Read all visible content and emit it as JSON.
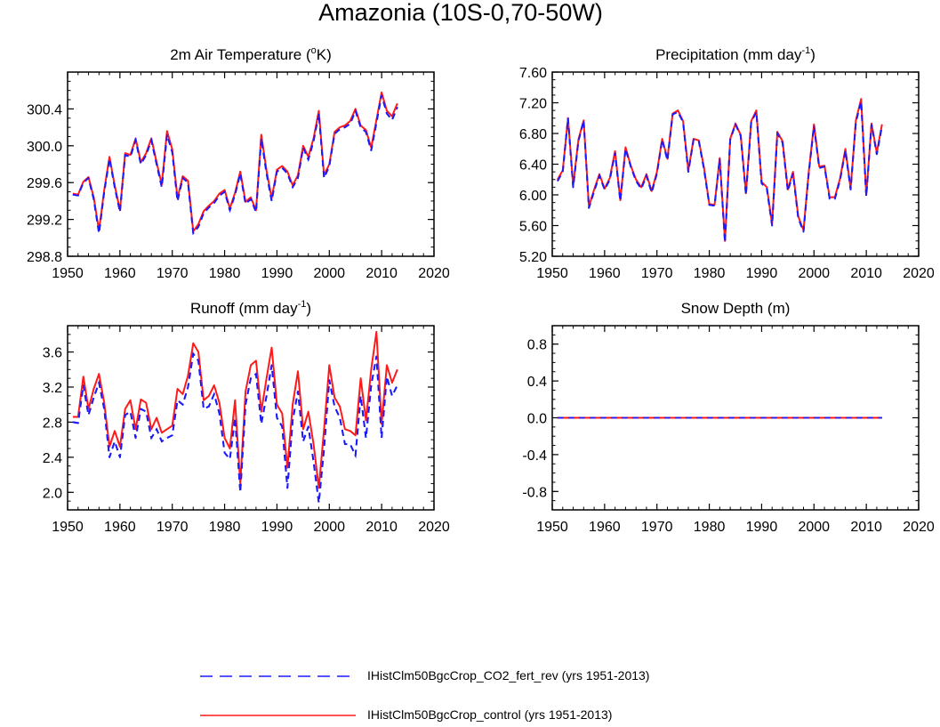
{
  "title": "Amazonia (10S-0,70-50W)",
  "legend": {
    "position": "bottom-center",
    "items": [
      {
        "label": "IHistClm50BgcCrop_CO2_fert_rev (yrs 1951-2013)",
        "color": "#1a1aff",
        "style": "dashed"
      },
      {
        "label": "IHistClm50BgcCrop_control (yrs 1951-2013)",
        "color": "#ff1a1a",
        "style": "solid"
      }
    ]
  },
  "chart_data": [
    {
      "type": "line",
      "title": "2m Air Temperature",
      "title_unit_base": "(",
      "title_unit_sup": "o",
      "title_unit_tail": "K)",
      "xlim": [
        1950,
        2020
      ],
      "ylim": [
        298.8,
        300.8
      ],
      "xticks": [
        1950,
        1960,
        1970,
        1980,
        1990,
        2000,
        2010,
        2020
      ],
      "yticks": [
        298.8,
        299.2,
        299.6,
        300.0,
        300.4
      ],
      "ytick_labels": [
        "298.8",
        "299.2",
        "299.6",
        "300.0",
        "300.4"
      ],
      "x": [
        1951,
        1952,
        1953,
        1954,
        1955,
        1956,
        1957,
        1958,
        1959,
        1960,
        1961,
        1962,
        1963,
        1964,
        1965,
        1966,
        1967,
        1968,
        1969,
        1970,
        1971,
        1972,
        1973,
        1974,
        1975,
        1976,
        1977,
        1978,
        1979,
        1980,
        1981,
        1982,
        1983,
        1984,
        1985,
        1986,
        1987,
        1988,
        1989,
        1990,
        1991,
        1992,
        1993,
        1994,
        1995,
        1996,
        1997,
        1998,
        1999,
        2000,
        2001,
        2002,
        2003,
        2004,
        2005,
        2006,
        2007,
        2008,
        2009,
        2010,
        2011,
        2012,
        2013
      ],
      "series": [
        {
          "name": "IHistClm50BgcCrop_CO2_fert_rev (yrs 1951-2013)",
          "color": "#1a1aff",
          "style": "dashed",
          "values": [
            299.47,
            299.46,
            299.6,
            299.65,
            299.42,
            299.05,
            299.5,
            299.86,
            299.55,
            299.28,
            299.9,
            299.88,
            300.06,
            299.8,
            299.9,
            300.06,
            299.8,
            299.55,
            300.12,
            299.93,
            299.4,
            299.65,
            299.6,
            299.05,
            299.12,
            299.27,
            299.33,
            299.38,
            299.46,
            299.5,
            299.3,
            299.47,
            299.7,
            299.37,
            299.42,
            299.28,
            300.08,
            299.7,
            299.4,
            299.72,
            299.76,
            299.7,
            299.55,
            299.65,
            299.98,
            299.85,
            300.05,
            300.35,
            299.65,
            299.78,
            300.13,
            300.18,
            300.2,
            300.24,
            300.38,
            300.2,
            300.15,
            299.95,
            300.25,
            300.55,
            300.35,
            300.28,
            300.42
          ]
        },
        {
          "name": "IHistClm50BgcCrop_control (yrs 1951-2013)",
          "color": "#ff1a1a",
          "style": "solid",
          "values": [
            299.48,
            299.47,
            299.61,
            299.66,
            299.44,
            299.08,
            299.52,
            299.88,
            299.57,
            299.3,
            299.92,
            299.9,
            300.08,
            299.82,
            299.92,
            300.08,
            299.82,
            299.58,
            300.16,
            299.96,
            299.43,
            299.67,
            299.62,
            299.07,
            299.15,
            299.29,
            299.35,
            299.4,
            299.48,
            299.52,
            299.32,
            299.49,
            299.72,
            299.39,
            299.44,
            299.3,
            300.12,
            299.73,
            299.43,
            299.74,
            299.78,
            299.72,
            299.57,
            299.68,
            300.0,
            299.88,
            300.08,
            300.38,
            299.68,
            299.8,
            300.15,
            300.2,
            300.22,
            300.27,
            300.4,
            300.22,
            300.17,
            299.98,
            300.28,
            300.58,
            300.38,
            300.32,
            300.46
          ]
        }
      ]
    },
    {
      "type": "line",
      "title": "Precipitation",
      "title_unit_base": "(mm day",
      "title_unit_sup": "-1",
      "title_unit_tail": ")",
      "xlim": [
        1950,
        2020
      ],
      "ylim": [
        5.2,
        7.6
      ],
      "xticks": [
        1950,
        1960,
        1970,
        1980,
        1990,
        2000,
        2010,
        2020
      ],
      "yticks": [
        5.2,
        5.6,
        6.0,
        6.4,
        6.8,
        7.2,
        7.6
      ],
      "ytick_labels": [
        "5.20",
        "5.60",
        "6.00",
        "6.40",
        "6.80",
        "7.20",
        "7.60"
      ],
      "x": [
        1951,
        1952,
        1953,
        1954,
        1955,
        1956,
        1957,
        1958,
        1959,
        1960,
        1961,
        1962,
        1963,
        1964,
        1965,
        1966,
        1967,
        1968,
        1969,
        1970,
        1971,
        1972,
        1973,
        1974,
        1975,
        1976,
        1977,
        1978,
        1979,
        1980,
        1981,
        1982,
        1983,
        1984,
        1985,
        1986,
        1987,
        1988,
        1989,
        1990,
        1991,
        1992,
        1993,
        1994,
        1995,
        1996,
        1997,
        1998,
        1999,
        2000,
        2001,
        2002,
        2003,
        2004,
        2005,
        2006,
        2007,
        2008,
        2009,
        2010,
        2011,
        2012,
        2013
      ],
      "series": [
        {
          "name": "IHistClm50BgcCrop_CO2_fert_rev (yrs 1951-2013)",
          "color": "#1a1aff",
          "style": "dashed",
          "values": [
            6.18,
            6.3,
            7.0,
            6.1,
            6.7,
            6.97,
            5.83,
            6.05,
            6.25,
            6.07,
            6.2,
            6.55,
            5.92,
            6.6,
            6.37,
            6.18,
            6.08,
            6.25,
            6.03,
            6.28,
            6.72,
            6.45,
            7.05,
            7.08,
            6.95,
            6.3,
            6.72,
            6.7,
            6.33,
            5.87,
            5.86,
            6.47,
            5.38,
            6.72,
            6.92,
            6.77,
            6.0,
            6.95,
            7.08,
            6.15,
            6.08,
            5.6,
            6.8,
            6.68,
            6.05,
            6.28,
            5.7,
            5.52,
            6.28,
            6.9,
            6.35,
            6.37,
            5.95,
            5.95,
            6.2,
            6.58,
            6.07,
            6.95,
            7.22,
            5.98,
            6.92,
            6.53,
            6.9
          ]
        },
        {
          "name": "IHistClm50BgcCrop_control (yrs 1951-2013)",
          "color": "#ff1a1a",
          "style": "solid",
          "values": [
            6.2,
            6.32,
            7.0,
            6.12,
            6.72,
            6.97,
            5.85,
            6.07,
            6.27,
            6.08,
            6.22,
            6.57,
            5.93,
            6.62,
            6.38,
            6.2,
            6.1,
            6.27,
            6.05,
            6.3,
            6.73,
            6.47,
            7.06,
            7.1,
            6.96,
            6.32,
            6.73,
            6.71,
            6.35,
            5.88,
            5.87,
            6.48,
            5.4,
            6.73,
            6.93,
            6.78,
            6.02,
            6.96,
            7.1,
            6.17,
            6.1,
            5.62,
            6.82,
            6.7,
            6.07,
            6.3,
            5.72,
            5.54,
            6.3,
            6.92,
            6.37,
            6.38,
            5.97,
            5.97,
            6.22,
            6.6,
            6.08,
            6.97,
            7.25,
            6.0,
            6.93,
            6.55,
            6.92
          ]
        }
      ]
    },
    {
      "type": "line",
      "title": "Runoff",
      "title_unit_base": "(mm day",
      "title_unit_sup": "-1",
      "title_unit_tail": ")",
      "xlim": [
        1950,
        2020
      ],
      "ylim": [
        1.8,
        3.9
      ],
      "xticks": [
        1950,
        1960,
        1970,
        1980,
        1990,
        2000,
        2010,
        2020
      ],
      "yticks": [
        2.0,
        2.4,
        2.8,
        3.2,
        3.6
      ],
      "ytick_labels": [
        "2.0",
        "2.4",
        "2.8",
        "3.2",
        "3.6"
      ],
      "x": [
        1951,
        1952,
        1953,
        1954,
        1955,
        1956,
        1957,
        1958,
        1959,
        1960,
        1961,
        1962,
        1963,
        1964,
        1965,
        1966,
        1967,
        1968,
        1969,
        1970,
        1971,
        1972,
        1973,
        1974,
        1975,
        1976,
        1977,
        1978,
        1979,
        1980,
        1981,
        1982,
        1983,
        1984,
        1985,
        1986,
        1987,
        1988,
        1989,
        1990,
        1991,
        1992,
        1993,
        1994,
        1995,
        1996,
        1997,
        1998,
        1999,
        2000,
        2001,
        2002,
        2003,
        2004,
        2005,
        2006,
        2007,
        2008,
        2009,
        2010,
        2011,
        2012,
        2013
      ],
      "series": [
        {
          "name": "IHistClm50BgcCrop_CO2_fert_rev (yrs 1951-2013)",
          "color": "#1a1aff",
          "style": "dashed",
          "values": [
            2.8,
            2.79,
            3.22,
            2.88,
            3.08,
            3.25,
            2.95,
            2.4,
            2.58,
            2.4,
            2.88,
            2.92,
            2.62,
            2.95,
            2.92,
            2.62,
            2.72,
            2.58,
            2.62,
            2.65,
            3.05,
            3.0,
            3.2,
            3.58,
            3.5,
            2.95,
            2.98,
            3.12,
            2.9,
            2.45,
            2.38,
            2.85,
            2.0,
            3.0,
            3.3,
            3.35,
            2.78,
            3.1,
            3.45,
            2.85,
            2.75,
            2.05,
            2.82,
            3.15,
            2.58,
            2.75,
            2.35,
            1.88,
            2.5,
            3.28,
            2.98,
            2.85,
            2.55,
            2.55,
            2.42,
            3.1,
            2.62,
            3.22,
            3.55,
            2.62,
            3.32,
            3.1,
            3.22
          ]
        },
        {
          "name": "IHistClm50BgcCrop_control (yrs 1951-2013)",
          "color": "#ff1a1a",
          "style": "solid",
          "values": [
            2.86,
            2.86,
            3.32,
            2.95,
            3.18,
            3.35,
            3.02,
            2.52,
            2.7,
            2.52,
            2.95,
            3.05,
            2.72,
            3.06,
            3.02,
            2.72,
            2.85,
            2.68,
            2.72,
            2.76,
            3.18,
            3.12,
            3.33,
            3.7,
            3.6,
            3.05,
            3.1,
            3.22,
            3.02,
            2.62,
            2.5,
            3.05,
            2.1,
            3.15,
            3.45,
            3.5,
            2.92,
            3.3,
            3.65,
            3.0,
            2.9,
            2.28,
            3.0,
            3.38,
            2.72,
            2.92,
            2.55,
            2.05,
            2.72,
            3.45,
            3.08,
            2.98,
            2.72,
            2.7,
            2.65,
            3.3,
            2.82,
            3.4,
            3.83,
            2.78,
            3.45,
            3.25,
            3.4
          ]
        }
      ]
    },
    {
      "type": "line",
      "title": "Snow Depth (m)",
      "title_unit_base": "",
      "title_unit_sup": "",
      "title_unit_tail": "",
      "xlim": [
        1950,
        2020
      ],
      "ylim": [
        -1.0,
        1.0
      ],
      "xticks": [
        1950,
        1960,
        1970,
        1980,
        1990,
        2000,
        2010,
        2020
      ],
      "yticks": [
        -0.8,
        -0.4,
        0.0,
        0.4,
        0.8
      ],
      "ytick_labels": [
        "-0.8",
        "-0.4",
        "0.0",
        "0.4",
        "0.8"
      ],
      "x": [
        1951,
        2013
      ],
      "series": [
        {
          "name": "IHistClm50BgcCrop_CO2_fert_rev (yrs 1951-2013)",
          "color": "#1a1aff",
          "style": "dashed",
          "values": [
            0.0,
            0.0
          ]
        },
        {
          "name": "IHistClm50BgcCrop_control (yrs 1951-2013)",
          "color": "#ff1a1a",
          "style": "solid",
          "values": [
            0.0,
            0.0
          ]
        }
      ]
    }
  ]
}
